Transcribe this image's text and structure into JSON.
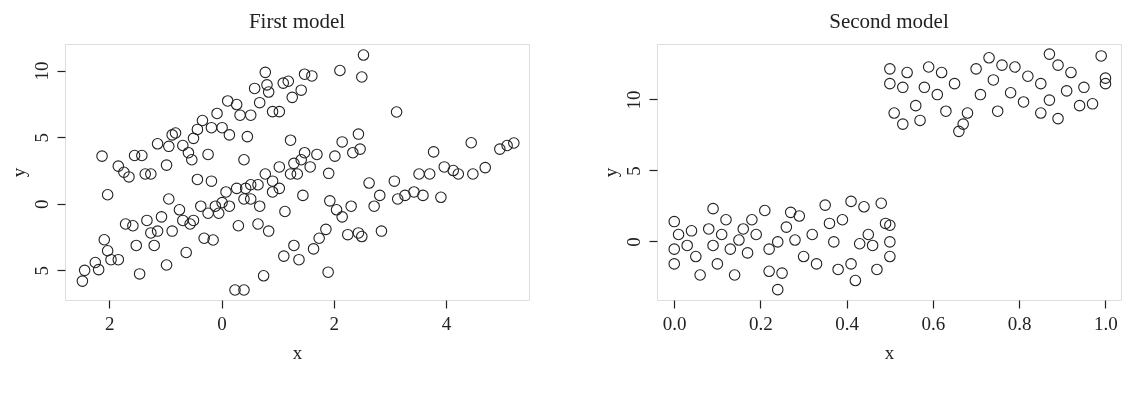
{
  "chart_data": [
    {
      "type": "scatter",
      "title": "First model",
      "xlabel": "x",
      "ylabel": "y",
      "marker": "circle",
      "xlim": [
        -2.79,
        5.48
      ],
      "ylim": [
        -7.24,
        12
      ],
      "xticks": [
        {
          "value": -2,
          "label": "2"
        },
        0,
        2,
        4
      ],
      "yticks": [
        {
          "value": -5,
          "label": "5"
        },
        0,
        5,
        10
      ],
      "series": [
        {
          "color": "#222222",
          "x": [
            -2.13,
            -2.03,
            -1.84,
            -1.74,
            -1.65,
            -1.55,
            -1.42,
            -1.36,
            -1.26,
            -1.14,
            -0.98,
            -0.94,
            -0.88,
            -0.82,
            -0.69,
            -0.59,
            -0.53,
            -0.5,
            -0.43,
            -0.34,
            -0.24,
            -0.18,
            -0.08,
            0.01,
            0.11,
            0.14,
            0.27,
            0.33,
            0.46,
            0.52,
            0.59,
            0.68,
            0.78,
            0.81,
            0.84,
            0.91,
            1.03,
            1.1,
            1.19,
            1.26,
            1.42,
            1.48,
            1.61,
            2.11,
            2.53,
            2.5,
            3.12,
            -2.48,
            -2.44,
            -2.25,
            -2.19,
            -2.09,
            -2.03,
            -1.97,
            -1.84,
            -1.71,
            -1.58,
            -1.52,
            -1.46,
            -1.33,
            -1.26,
            -1.2,
            -1.07,
            -0.98,
            -0.94,
            -0.88,
            -0.75,
            -0.63,
            -0.56,
            -0.43,
            -0.37,
            -0.31,
            -0.18,
            -0.15,
            -0.05,
            0.08,
            0.14,
            0.3,
            0.4,
            0.43,
            0.52,
            0.65,
            0.68,
            0.75,
            0.84,
            0.91,
            1.03,
            1.13,
            1.23,
            1.29,
            1.35,
            1.45,
            1.48,
            1.58,
            1.7,
            1.91,
            2.02,
            2.15,
            2.34,
            2.44,
            2.47,
            0.01,
            -0.24,
            -0.5,
            0.27,
            0.52,
            0.78,
            1.03,
            0.24,
            0.4,
            1.11,
            1.29,
            1.38,
            -1.14,
            -0.69,
            -0.11,
            0.4,
            0.65,
            0.91,
            1.23,
            1.42,
            1.64,
            1.74,
            1.86,
            1.9,
            1.93,
            2.05,
            2.15,
            2.25,
            2.31,
            2.44,
            2.5,
            2.63,
            2.72,
            2.85,
            2.82,
            3.08,
            3.14,
            3.27,
            3.43,
            3.52,
            3.59,
            3.78,
            3.71,
            3.91,
            3.97,
            4.13,
            4.22,
            4.45,
            4.48,
            4.7,
            4.96,
            5.21,
            5.09
          ],
          "values": [
            3.57,
            0.67,
            2.82,
            2.36,
            2.01,
            3.62,
            3.62,
            2.23,
            2.23,
            4.5,
            2.9,
            4.31,
            5.17,
            5.31,
            4.37,
            3.83,
            3.3,
            4.91,
            5.58,
            6.25,
            3.7,
            5.71,
            6.78,
            5.71,
            7.72,
            5.17,
            7.45,
            6.65,
            5.04,
            6.65,
            8.66,
            7.59,
            9.87,
            8.93,
            8.39,
            6.92,
            6.92,
            9.06,
            9.2,
            7.99,
            8.53,
            9.73,
            9.6,
            10.01,
            11.17,
            9.52,
            6.89,
            -5.82,
            -5.01,
            -4.42,
            -4.96,
            -2.71,
            -3.54,
            -4.21,
            -4.21,
            -1.53,
            -1.66,
            -3.14,
            -5.28,
            -1.26,
            -2.2,
            -3.14,
            -0.99,
            -4.61,
            0.35,
            -2.06,
            -0.46,
            -3.67,
            -1.53,
            1.82,
            -0.19,
            -2.6,
            1.69,
            -2.73,
            -0.72,
            0.88,
            -0.19,
            -1.66,
            3.3,
            1.15,
            0.35,
            -1.53,
            -0.19,
            -5.42,
            -2.06,
            1.69,
            1.15,
            -0.59,
            4.77,
            3.03,
            2.23,
            0.62,
            3.83,
            2.76,
            3.7,
            2.28,
            3.57,
            4.64,
            3.83,
            5.23,
            4.1,
            0.08,
            -0.72,
            -1.26,
            1.15,
            1.42,
            2.23,
            2.76,
            -6.49,
            -6.49,
            -3.94,
            -3.14,
            -4.21,
            -2.06,
            -1.26,
            -0.19,
            0.35,
            1.42,
            0.88,
            2.23,
            3.3,
            -3.4,
            -2.6,
            -1.93,
            -5.15,
            0.21,
            -0.46,
            -0.99,
            -2.33,
            -0.19,
            -2.2,
            -2.47,
            1.55,
            -0.19,
            -2.06,
            0.62,
            1.69,
            0.35,
            0.62,
            0.88,
            2.23,
            0.62,
            3.89,
            2.23,
            0.48,
            2.76,
            2.49,
            2.23,
            4.58,
            2.23,
            2.71,
            4.1,
            4.56,
            4.37
          ]
        }
      ]
    },
    {
      "type": "scatter",
      "title": "Second model",
      "xlabel": "x",
      "ylabel": "y",
      "marker": "circle",
      "xlim": [
        -0.04,
        1.036
      ],
      "ylim": [
        -4.12,
        13.9
      ],
      "xticks": [
        {
          "value": 0,
          "label": "0.0"
        },
        0.2,
        0.4,
        0.6,
        0.8,
        {
          "value": 1,
          "label": "1.0"
        }
      ],
      "yticks": [
        0,
        5,
        10
      ],
      "series": [
        {
          "color": "#222222",
          "x": [
            0.0,
            0.0,
            0.0,
            0.01,
            0.03,
            0.04,
            0.05,
            0.06,
            0.08,
            0.09,
            0.09,
            0.1,
            0.11,
            0.12,
            0.13,
            0.14,
            0.15,
            0.16,
            0.17,
            0.18,
            0.19,
            0.21,
            0.22,
            0.22,
            0.24,
            0.24,
            0.25,
            0.26,
            0.27,
            0.28,
            0.29,
            0.3,
            0.32,
            0.33,
            0.35,
            0.36,
            0.37,
            0.38,
            0.39,
            0.41,
            0.41,
            0.43,
            0.42,
            0.44,
            0.45,
            0.46,
            0.47,
            0.48,
            0.49,
            0.5,
            0.5,
            0.5,
            0.5,
            0.5,
            0.51,
            0.53,
            0.53,
            0.54,
            0.56,
            0.57,
            0.58,
            0.59,
            0.61,
            0.62,
            0.63,
            0.65,
            0.66,
            0.67,
            0.68,
            0.7,
            0.71,
            0.73,
            0.74,
            0.75,
            0.76,
            0.78,
            0.79,
            0.81,
            0.82,
            0.85,
            0.85,
            0.87,
            0.87,
            0.89,
            0.89,
            0.91,
            0.92,
            0.94,
            0.95,
            0.97,
            0.99,
            1.0,
            1.0
          ],
          "values": [
            1.4,
            -0.54,
            -1.58,
            0.49,
            -0.28,
            0.75,
            -1.06,
            -2.36,
            0.88,
            2.31,
            -0.28,
            -1.58,
            0.49,
            1.53,
            -0.54,
            -2.36,
            0.1,
            0.88,
            -0.8,
            1.53,
            0.49,
            2.18,
            -0.54,
            -2.1,
            -0.03,
            -3.39,
            -2.23,
            1.01,
            2.05,
            0.1,
            1.79,
            -1.06,
            0.49,
            -1.58,
            2.56,
            1.27,
            -0.03,
            -1.97,
            1.53,
            -1.58,
            2.82,
            -0.16,
            -2.75,
            2.44,
            0.49,
            -0.28,
            -1.97,
            2.69,
            1.27,
            -0.03,
            1.14,
            -1.06,
            12.15,
            11.11,
            9.04,
            8.26,
            10.85,
            11.89,
            9.56,
            8.52,
            10.85,
            12.28,
            10.34,
            11.89,
            9.17,
            11.11,
            7.75,
            8.26,
            9.04,
            12.15,
            10.34,
            12.93,
            11.37,
            9.17,
            12.41,
            10.47,
            12.28,
            9.82,
            11.63,
            9.04,
            11.11,
            9.95,
            13.19,
            8.65,
            12.41,
            10.6,
            11.89,
            9.56,
            10.85,
            9.69,
            13.06,
            11.11,
            11.5
          ]
        }
      ]
    }
  ]
}
